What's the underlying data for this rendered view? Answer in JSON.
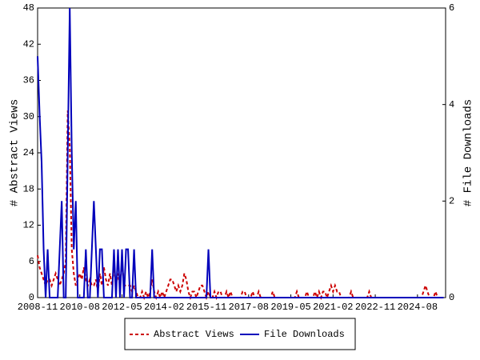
{
  "chart_data": {
    "type": "line",
    "x": [
      "2008-11",
      "2008-12",
      "2009-01",
      "2009-02",
      "2009-03",
      "2009-04",
      "2009-05",
      "2009-06",
      "2009-07",
      "2009-08",
      "2009-09",
      "2009-10",
      "2009-11",
      "2009-12",
      "2010-01",
      "2010-02",
      "2010-03",
      "2010-04",
      "2010-05",
      "2010-06",
      "2010-07",
      "2010-08",
      "2010-09",
      "2010-10",
      "2010-11",
      "2010-12",
      "2011-01",
      "2011-02",
      "2011-03",
      "2011-04",
      "2011-05",
      "2011-06",
      "2011-07",
      "2011-08",
      "2011-09",
      "2011-10",
      "2011-11",
      "2011-12",
      "2012-01",
      "2012-02",
      "2012-03",
      "2012-04",
      "2012-05",
      "2012-06",
      "2012-07",
      "2012-08",
      "2012-09",
      "2012-10",
      "2012-11",
      "2012-12",
      "2013-01",
      "2013-02",
      "2013-03",
      "2013-04",
      "2013-05",
      "2013-06",
      "2013-07",
      "2013-08",
      "2013-09",
      "2013-10",
      "2013-11",
      "2013-12",
      "2014-01",
      "2014-02",
      "2014-03",
      "2014-04",
      "2014-05",
      "2014-06",
      "2014-07",
      "2014-08",
      "2014-09",
      "2014-10",
      "2014-11",
      "2014-12",
      "2015-01",
      "2015-02",
      "2015-03",
      "2015-04",
      "2015-05",
      "2015-06",
      "2015-07",
      "2015-08",
      "2015-09",
      "2015-10",
      "2015-11",
      "2015-12",
      "2016-01",
      "2016-02",
      "2016-03",
      "2016-04",
      "2016-05",
      "2016-06",
      "2016-07",
      "2016-08",
      "2016-09",
      "2016-10",
      "2016-11",
      "2016-12",
      "2017-01",
      "2017-02",
      "2017-03",
      "2017-04",
      "2017-05",
      "2017-06",
      "2017-07",
      "2017-08",
      "2017-09",
      "2017-10",
      "2017-11",
      "2017-12",
      "2018-01",
      "2018-02",
      "2018-03",
      "2018-04",
      "2018-05",
      "2018-06",
      "2018-07",
      "2018-08",
      "2018-09",
      "2018-10",
      "2018-11",
      "2018-12",
      "2019-01",
      "2019-02",
      "2019-03",
      "2019-04",
      "2019-05",
      "2019-06",
      "2019-07",
      "2019-08",
      "2019-09",
      "2019-10",
      "2019-11",
      "2019-12",
      "2020-01",
      "2020-02",
      "2020-03",
      "2020-04",
      "2020-05",
      "2020-06",
      "2020-07",
      "2020-08",
      "2020-09",
      "2020-10",
      "2020-11",
      "2020-12",
      "2021-01",
      "2021-02",
      "2021-03",
      "2021-04",
      "2021-05",
      "2021-06",
      "2021-07",
      "2021-08",
      "2021-09",
      "2021-10",
      "2021-11",
      "2021-12",
      "2022-01",
      "2022-02",
      "2022-03",
      "2022-04",
      "2022-05",
      "2022-06",
      "2022-07",
      "2022-08",
      "2022-09",
      "2022-10",
      "2022-11",
      "2022-12",
      "2023-01",
      "2023-02",
      "2023-03",
      "2023-04",
      "2023-05",
      "2023-06",
      "2023-07",
      "2023-08",
      "2023-09",
      "2023-10",
      "2023-11",
      "2023-12",
      "2024-01",
      "2024-02",
      "2024-03",
      "2024-04",
      "2024-05",
      "2024-06",
      "2024-07",
      "2024-08",
      "2024-09",
      "2024-10",
      "2024-11",
      "2024-12",
      "2025-01",
      "2025-02",
      "2025-03",
      "2025-04",
      "2025-05",
      "2025-06",
      "2025-07",
      "2025-08",
      "2025-09"
    ],
    "series": [
      {
        "name": "Abstract Views",
        "color": "#cc0000",
        "dash": true,
        "values": [
          7,
          5,
          4,
          3,
          2,
          3,
          3,
          2,
          3,
          4,
          3,
          2,
          3,
          4,
          6,
          31,
          25,
          8,
          4,
          2,
          3,
          4,
          3,
          5,
          3,
          2,
          3,
          2,
          2,
          3,
          1,
          4,
          2,
          5,
          3,
          2,
          4,
          2,
          5,
          2,
          4,
          2,
          6,
          2,
          2,
          2,
          2,
          1,
          2,
          1,
          0,
          0,
          1,
          0,
          1,
          0,
          1,
          3,
          1,
          0,
          1,
          0,
          1,
          0,
          1,
          2,
          3,
          3,
          2,
          1,
          2,
          1,
          2,
          4,
          3,
          1,
          0,
          1,
          1,
          0,
          1,
          2,
          2,
          1,
          0,
          1,
          0,
          0,
          1,
          0,
          1,
          1,
          0,
          0,
          1,
          0,
          1,
          0,
          0,
          0,
          0,
          0,
          1,
          1,
          0,
          0,
          0,
          1,
          0,
          0,
          1,
          0,
          0,
          0,
          0,
          0,
          0,
          1,
          0,
          0,
          0,
          0,
          0,
          0,
          0,
          0,
          0,
          0,
          0,
          1,
          0,
          0,
          0,
          0,
          1,
          0,
          0,
          0,
          1,
          0,
          1,
          0,
          1,
          1,
          0,
          1,
          2,
          1,
          2,
          1,
          1,
          0,
          0,
          0,
          0,
          0,
          1,
          0,
          0,
          0,
          0,
          0,
          0,
          0,
          0,
          1,
          0,
          0,
          0,
          0,
          0,
          0,
          0,
          0,
          0,
          0,
          0,
          0,
          0,
          0,
          0,
          0,
          0,
          0,
          0,
          0,
          0,
          0,
          0,
          0,
          0,
          0,
          1,
          2,
          1,
          0,
          0,
          0,
          1,
          0,
          0,
          0,
          0
        ]
      },
      {
        "name": "File Downloads",
        "color": "#0000bb",
        "axis": "y2",
        "values": [
          5,
          3.8,
          2.8,
          1,
          0,
          1,
          0,
          0,
          0,
          0,
          0,
          1,
          2,
          0,
          0,
          3,
          6,
          3,
          1,
          2,
          0,
          0,
          0,
          0,
          1,
          0,
          0,
          1,
          2,
          1,
          0,
          1,
          1,
          0,
          0,
          0,
          0,
          0,
          1,
          0,
          1,
          0,
          1,
          0,
          1,
          1,
          0,
          0,
          1,
          0,
          0,
          0,
          0,
          0,
          0,
          0,
          0,
          1,
          0,
          0,
          0,
          0,
          0,
          0,
          0,
          0,
          0,
          0,
          0,
          0,
          0,
          0,
          0,
          0,
          0,
          0,
          0,
          0,
          0,
          0,
          0,
          0,
          0,
          0,
          0,
          1,
          0,
          0,
          0,
          0,
          0,
          0,
          0,
          0,
          0,
          0,
          0,
          0,
          0,
          0,
          0,
          0,
          0,
          0,
          0,
          0,
          0,
          0,
          0,
          0,
          0,
          0,
          0,
          0,
          0,
          0,
          0,
          0,
          0,
          0,
          0,
          0,
          0,
          0,
          0,
          0,
          0,
          0,
          0,
          0,
          0,
          0,
          0,
          0,
          0,
          0,
          0,
          0,
          0,
          0,
          0,
          0,
          0,
          0,
          0,
          0,
          0,
          0,
          0,
          0,
          0,
          0,
          0,
          0,
          0,
          0,
          0,
          0,
          0,
          0,
          0,
          0,
          0,
          0,
          0,
          0,
          0,
          0,
          0,
          0,
          0,
          0,
          0,
          0,
          0,
          0,
          0,
          0,
          0,
          0,
          0,
          0,
          0,
          0,
          0,
          0,
          0,
          0,
          0,
          0,
          0,
          0,
          0,
          0,
          0,
          0,
          0,
          0,
          0,
          0,
          0,
          0,
          0
        ]
      }
    ],
    "ylabel": "# Abstract Views",
    "y2label": "# File Downloads",
    "xlim": [
      "2008-11",
      "2025-10"
    ],
    "xticks": [
      "2008-11",
      "2010-08",
      "2012-05",
      "2014-02",
      "2015-11",
      "2017-08",
      "2019-05",
      "2021-02",
      "2022-11",
      "2024-08"
    ],
    "ylim": [
      0,
      48
    ],
    "yticks": [
      0,
      6,
      12,
      18,
      24,
      30,
      36,
      42,
      48
    ],
    "y2lim": [
      0,
      6
    ],
    "y2ticks": [
      0,
      2,
      4,
      6
    ],
    "legend": "bottom"
  }
}
